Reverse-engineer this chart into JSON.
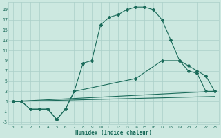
{
  "xlabel": "Humidex (Indice chaleur)",
  "background_color": "#cce8e0",
  "grid_color": "#aacfc8",
  "line_color": "#1a6b5a",
  "xlim": [
    -0.5,
    23.5
  ],
  "ylim": [
    -3.5,
    20.5
  ],
  "xticks": [
    0,
    1,
    2,
    3,
    4,
    5,
    6,
    7,
    8,
    9,
    10,
    11,
    12,
    13,
    14,
    15,
    16,
    17,
    18,
    19,
    20,
    21,
    22,
    23
  ],
  "yticks": [
    -3,
    -1,
    1,
    3,
    5,
    7,
    9,
    11,
    13,
    15,
    17,
    19
  ],
  "line1_x": [
    0,
    1,
    2,
    3,
    4,
    5,
    6,
    7,
    8,
    9,
    10,
    11,
    12,
    13,
    14,
    15,
    16,
    17,
    18,
    19,
    20,
    21,
    22,
    23
  ],
  "line1_y": [
    1,
    1,
    -0.5,
    -0.5,
    -0.5,
    -2.5,
    -0.5,
    3,
    8.5,
    9,
    16,
    17.5,
    18,
    19,
    19.5,
    19.5,
    19,
    17,
    13,
    9,
    7,
    6.5,
    3,
    3
  ],
  "line2_x": [
    0,
    1,
    2,
    3,
    4,
    5,
    6,
    7,
    14,
    17,
    19,
    20,
    21,
    22,
    23
  ],
  "line2_y": [
    1,
    1,
    -0.5,
    -0.5,
    -0.5,
    -2.5,
    -0.5,
    3,
    5.5,
    9,
    9,
    8,
    7,
    6,
    3
  ],
  "line3_x": [
    0,
    23
  ],
  "line3_y": [
    1,
    3
  ],
  "line4_x": [
    0,
    23
  ],
  "line4_y": [
    1,
    2
  ]
}
